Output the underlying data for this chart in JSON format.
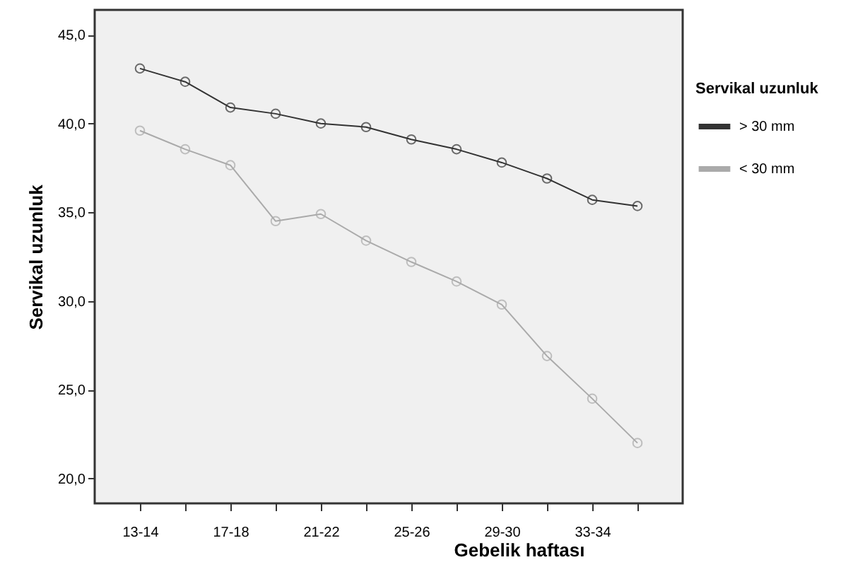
{
  "chart_data": {
    "type": "line",
    "xlabel": "Gebelik haftası",
    "ylabel": "Servikal uzunluk",
    "legend_title": "Servikal uzunluk",
    "categories": [
      "13-14",
      null,
      "17-18",
      null,
      "21-22",
      null,
      "25-26",
      null,
      "29-30",
      null,
      "33-34",
      null
    ],
    "series": [
      {
        "name": "> 30 mm",
        "color": "#333333",
        "values": [
          43.1,
          42.35,
          40.9,
          40.55,
          40.0,
          39.8,
          39.1,
          38.55,
          37.8,
          36.9,
          35.7,
          35.35
        ]
      },
      {
        "name": "< 30 mm",
        "color": "#aaaaaa",
        "values": [
          39.6,
          38.55,
          37.65,
          34.5,
          34.9,
          33.4,
          32.2,
          31.1,
          29.8,
          26.9,
          24.5,
          22.0
        ]
      }
    ],
    "ylim": [
      18.6,
      46.4
    ],
    "yticks": [
      {
        "value": 20,
        "label": "20,0"
      },
      {
        "value": 25,
        "label": "25,0"
      },
      {
        "value": 30,
        "label": "30,0"
      },
      {
        "value": 35,
        "label": "35,0"
      },
      {
        "value": 40,
        "label": "40,0"
      },
      {
        "value": 45,
        "label": "45,0"
      }
    ],
    "legend": "right",
    "marker": "circle",
    "line_style": "solid",
    "grid": false
  }
}
